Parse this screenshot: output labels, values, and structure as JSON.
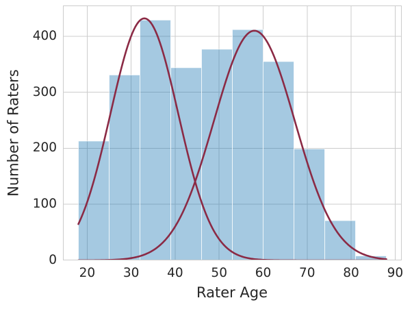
{
  "figure": {
    "background_color": "#ffffff",
    "text_color": "#262626",
    "grid_color": "#cccccc",
    "spine_color": "#cccccc"
  },
  "chart_data": {
    "type": "bar",
    "subtype": "histogram-with-fit-curves",
    "title": "",
    "xlabel": "Rater Age",
    "ylabel": "Number of Raters",
    "xlim": [
      14.5,
      91.5
    ],
    "ylim": [
      0,
      455
    ],
    "xticks": [
      20,
      30,
      40,
      50,
      60,
      70,
      80,
      90
    ],
    "yticks": [
      0,
      100,
      200,
      300,
      400
    ],
    "grid": true,
    "legend": null,
    "histogram": {
      "bin_edges": [
        18,
        25,
        32,
        39,
        46,
        53,
        60,
        67,
        74,
        81,
        88
      ],
      "counts": [
        213,
        331,
        429,
        344,
        377,
        412,
        355,
        199,
        71,
        8
      ],
      "fill_color": "rgba(31,119,180,0.4)",
      "edge_color": "rgba(255,255,255,0.75)"
    },
    "curves": [
      {
        "name": "younger-raters-normal-fit",
        "mean": 33,
        "sigma": 7.7,
        "amplitude": 432,
        "x_range": [
          18,
          88
        ],
        "color": "#8b2a45",
        "line_width": 2.6
      },
      {
        "name": "older-raters-normal-fit",
        "mean": 58,
        "sigma": 9.2,
        "amplitude": 410,
        "x_range": [
          18,
          88
        ],
        "color": "#8b2a45",
        "line_width": 2.6
      }
    ]
  }
}
